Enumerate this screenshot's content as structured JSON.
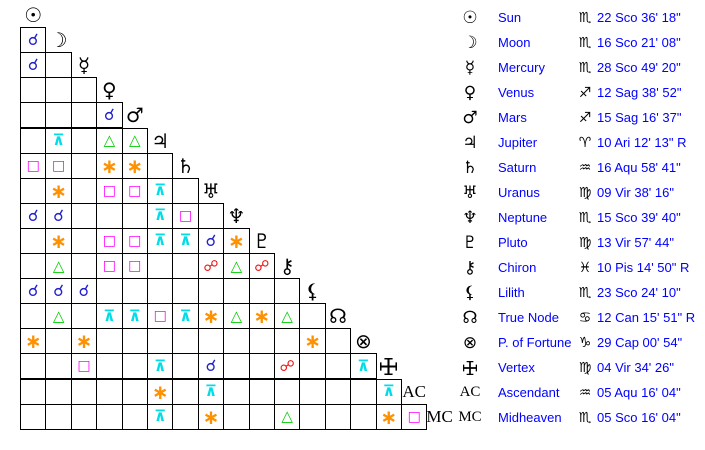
{
  "colors": {
    "background": "#ffffff",
    "grid_line": "#000000",
    "glyph_black": "#000000",
    "legend_text_blue": "#0000ff"
  },
  "planets": [
    {
      "name": "Sun",
      "glyph": "☉",
      "render": "glyph",
      "sign": "♏",
      "position": "22 Sco 36' 18\""
    },
    {
      "name": "Moon",
      "glyph": "☽",
      "render": "glyph",
      "sign": "♏",
      "position": "16 Sco 21' 08\""
    },
    {
      "name": "Mercury",
      "glyph": "☿",
      "render": "glyph",
      "sign": "♏",
      "position": "28 Sco 49' 20\""
    },
    {
      "name": "Venus",
      "glyph": "♀",
      "render": "glyph",
      "sign": "♐",
      "position": "12 Sag 38' 52\""
    },
    {
      "name": "Mars",
      "glyph": "♂",
      "render": "glyph",
      "sign": "♐",
      "position": "15 Sag 16' 37\""
    },
    {
      "name": "Jupiter",
      "glyph": "♃",
      "render": "glyph",
      "sign": "♈",
      "position": "10 Ari 12' 13\" R"
    },
    {
      "name": "Saturn",
      "glyph": "♄",
      "render": "glyph",
      "sign": "♒",
      "position": "16 Aqu 58' 41\""
    },
    {
      "name": "Uranus",
      "glyph": "♅",
      "render": "glyph",
      "sign": "♍",
      "position": "09 Vir 38' 16\""
    },
    {
      "name": "Neptune",
      "glyph": "♆",
      "render": "glyph",
      "sign": "♏",
      "position": "15 Sco 39' 40\""
    },
    {
      "name": "Pluto",
      "glyph": "♇",
      "render": "glyph",
      "sign": "♍",
      "position": "13 Vir 57' 44\""
    },
    {
      "name": "Chiron",
      "glyph": "⚷",
      "render": "glyph",
      "sign": "♓",
      "position": "10 Pis 14' 50\" R"
    },
    {
      "name": "Lilith",
      "glyph": "⚸",
      "render": "glyph",
      "sign": "♏",
      "position": "23 Sco 24' 10\""
    },
    {
      "name": "True Node",
      "glyph": "☊",
      "render": "glyph",
      "sign": "♋",
      "position": "12 Can 15' 51\" R"
    },
    {
      "name": "P. of Fortune",
      "glyph": "⊗",
      "render": "glyph",
      "sign": "♑",
      "position": "29 Cap 00' 54\""
    },
    {
      "name": "Vertex",
      "glyph": "✛",
      "render": "vertex-cross",
      "sign": "♍",
      "position": "04 Vir 34' 26\""
    },
    {
      "name": "Ascendant",
      "glyph": "AC",
      "render": "text",
      "sign": "♒",
      "position": "05 Aqu 16' 04\""
    },
    {
      "name": "Midheaven",
      "glyph": "MC",
      "render": "text",
      "sign": "♏",
      "position": "05 Sco 16' 04\""
    }
  ],
  "aspects": {
    "types": {
      "conjunction": {
        "glyph": "☌",
        "color": "#2222cc"
      },
      "sextile": {
        "glyph": "∗",
        "color": "#ff9100"
      },
      "square": {
        "glyph": "□",
        "color": "#ff00ff"
      },
      "trine": {
        "glyph": "△",
        "color": "#00cd00"
      },
      "quincunx": {
        "glyph": "⊼",
        "color": "#00dde8"
      },
      "opposition": {
        "glyph": "☍",
        "color": "#ee1111"
      }
    },
    "cells": [
      {
        "row": "Moon",
        "col": "Sun",
        "type": "conjunction"
      },
      {
        "row": "Mercury",
        "col": "Sun",
        "type": "conjunction"
      },
      {
        "row": "Mars",
        "col": "Venus",
        "type": "conjunction"
      },
      {
        "row": "Jupiter",
        "col": "Moon",
        "type": "quincunx"
      },
      {
        "row": "Jupiter",
        "col": "Venus",
        "type": "trine"
      },
      {
        "row": "Jupiter",
        "col": "Mars",
        "type": "trine"
      },
      {
        "row": "Saturn",
        "col": "Sun",
        "type": "square"
      },
      {
        "row": "Saturn",
        "col": "Moon",
        "type": "square"
      },
      {
        "row": "Saturn",
        "col": "Venus",
        "type": "sextile"
      },
      {
        "row": "Saturn",
        "col": "Mars",
        "type": "sextile"
      },
      {
        "row": "Uranus",
        "col": "Moon",
        "type": "sextile"
      },
      {
        "row": "Uranus",
        "col": "Venus",
        "type": "square"
      },
      {
        "row": "Uranus",
        "col": "Mars",
        "type": "square"
      },
      {
        "row": "Uranus",
        "col": "Jupiter",
        "type": "quincunx"
      },
      {
        "row": "Neptune",
        "col": "Sun",
        "type": "conjunction"
      },
      {
        "row": "Neptune",
        "col": "Moon",
        "type": "conjunction"
      },
      {
        "row": "Neptune",
        "col": "Jupiter",
        "type": "quincunx"
      },
      {
        "row": "Neptune",
        "col": "Saturn",
        "type": "square"
      },
      {
        "row": "Pluto",
        "col": "Moon",
        "type": "sextile"
      },
      {
        "row": "Pluto",
        "col": "Venus",
        "type": "square"
      },
      {
        "row": "Pluto",
        "col": "Mars",
        "type": "square"
      },
      {
        "row": "Pluto",
        "col": "Jupiter",
        "type": "quincunx"
      },
      {
        "row": "Pluto",
        "col": "Saturn",
        "type": "quincunx"
      },
      {
        "row": "Pluto",
        "col": "Uranus",
        "type": "conjunction"
      },
      {
        "row": "Pluto",
        "col": "Neptune",
        "type": "sextile"
      },
      {
        "row": "Chiron",
        "col": "Moon",
        "type": "trine"
      },
      {
        "row": "Chiron",
        "col": "Venus",
        "type": "square"
      },
      {
        "row": "Chiron",
        "col": "Mars",
        "type": "square"
      },
      {
        "row": "Chiron",
        "col": "Uranus",
        "type": "opposition"
      },
      {
        "row": "Chiron",
        "col": "Neptune",
        "type": "trine"
      },
      {
        "row": "Chiron",
        "col": "Pluto",
        "type": "opposition"
      },
      {
        "row": "Lilith",
        "col": "Sun",
        "type": "conjunction"
      },
      {
        "row": "Lilith",
        "col": "Moon",
        "type": "conjunction"
      },
      {
        "row": "Lilith",
        "col": "Mercury",
        "type": "conjunction"
      },
      {
        "row": "True Node",
        "col": "Moon",
        "type": "trine"
      },
      {
        "row": "True Node",
        "col": "Venus",
        "type": "quincunx"
      },
      {
        "row": "True Node",
        "col": "Mars",
        "type": "quincunx"
      },
      {
        "row": "True Node",
        "col": "Jupiter",
        "type": "square"
      },
      {
        "row": "True Node",
        "col": "Saturn",
        "type": "quincunx"
      },
      {
        "row": "True Node",
        "col": "Uranus",
        "type": "sextile"
      },
      {
        "row": "True Node",
        "col": "Neptune",
        "type": "trine"
      },
      {
        "row": "True Node",
        "col": "Pluto",
        "type": "sextile"
      },
      {
        "row": "True Node",
        "col": "Chiron",
        "type": "trine"
      },
      {
        "row": "P. of Fortune",
        "col": "Sun",
        "type": "sextile"
      },
      {
        "row": "P. of Fortune",
        "col": "Mercury",
        "type": "sextile"
      },
      {
        "row": "P. of Fortune",
        "col": "Lilith",
        "type": "sextile"
      },
      {
        "row": "Vertex",
        "col": "Mercury",
        "type": "square"
      },
      {
        "row": "Vertex",
        "col": "Jupiter",
        "type": "quincunx"
      },
      {
        "row": "Vertex",
        "col": "Uranus",
        "type": "conjunction"
      },
      {
        "row": "Vertex",
        "col": "Chiron",
        "type": "opposition"
      },
      {
        "row": "Vertex",
        "col": "P. of Fortune",
        "type": "quincunx"
      },
      {
        "row": "Ascendant",
        "col": "Jupiter",
        "type": "sextile"
      },
      {
        "row": "Ascendant",
        "col": "Uranus",
        "type": "quincunx"
      },
      {
        "row": "Ascendant",
        "col": "Vertex",
        "type": "quincunx"
      },
      {
        "row": "Midheaven",
        "col": "Jupiter",
        "type": "quincunx"
      },
      {
        "row": "Midheaven",
        "col": "Uranus",
        "type": "sextile"
      },
      {
        "row": "Midheaven",
        "col": "Chiron",
        "type": "trine"
      },
      {
        "row": "Midheaven",
        "col": "Vertex",
        "type": "sextile"
      },
      {
        "row": "Midheaven",
        "col": "Ascendant",
        "type": "square"
      }
    ]
  }
}
